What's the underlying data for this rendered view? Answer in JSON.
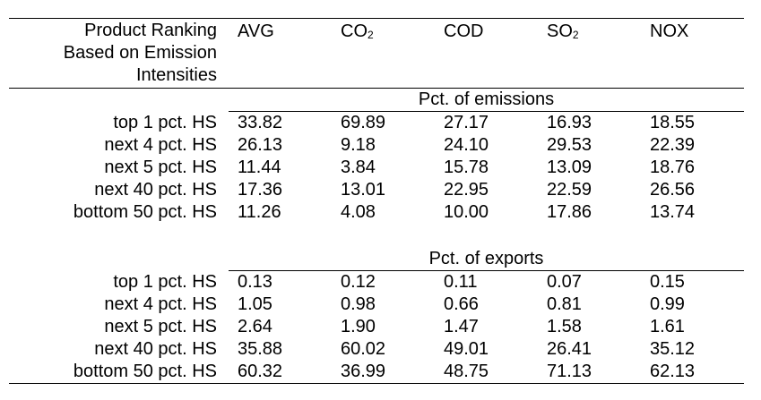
{
  "table": {
    "header_label_lines": [
      "Product Ranking",
      "Based on Emission",
      "Intensities"
    ],
    "columns": [
      {
        "base": "AVG",
        "sub": ""
      },
      {
        "base": "CO",
        "sub": "2"
      },
      {
        "base": "COD",
        "sub": ""
      },
      {
        "base": "SO",
        "sub": "2"
      },
      {
        "base": "NOX",
        "sub": ""
      }
    ],
    "sections": [
      {
        "title": "Pct. of emissions",
        "rows": [
          {
            "label": "top 1 pct. HS",
            "values": [
              "33.82",
              "69.89",
              "27.17",
              "16.93",
              "18.55"
            ]
          },
          {
            "label": "next 4 pct. HS",
            "values": [
              "26.13",
              "9.18",
              "24.10",
              "29.53",
              "22.39"
            ]
          },
          {
            "label": "next 5 pct. HS",
            "values": [
              "11.44",
              "3.84",
              "15.78",
              "13.09",
              "18.76"
            ]
          },
          {
            "label": "next 40 pct. HS",
            "values": [
              "17.36",
              "13.01",
              "22.95",
              "22.59",
              "26.56"
            ]
          },
          {
            "label": "bottom 50 pct. HS",
            "values": [
              "11.26",
              "4.08",
              "10.00",
              "17.86",
              "13.74"
            ]
          }
        ]
      },
      {
        "title": "Pct. of exports",
        "rows": [
          {
            "label": "top 1 pct. HS",
            "values": [
              "0.13",
              "0.12",
              "0.11",
              "0.07",
              "0.15"
            ]
          },
          {
            "label": "next 4 pct. HS",
            "values": [
              "1.05",
              "0.98",
              "0.66",
              "0.81",
              "0.99"
            ]
          },
          {
            "label": "next 5 pct. HS",
            "values": [
              "2.64",
              "1.90",
              "1.47",
              "1.58",
              "1.61"
            ]
          },
          {
            "label": "next 40 pct. HS",
            "values": [
              "35.88",
              "60.02",
              "49.01",
              "26.41",
              "35.12"
            ]
          },
          {
            "label": "bottom 50 pct. HS",
            "values": [
              "60.32",
              "36.99",
              "48.75",
              "71.13",
              "62.13"
            ]
          }
        ]
      }
    ]
  }
}
